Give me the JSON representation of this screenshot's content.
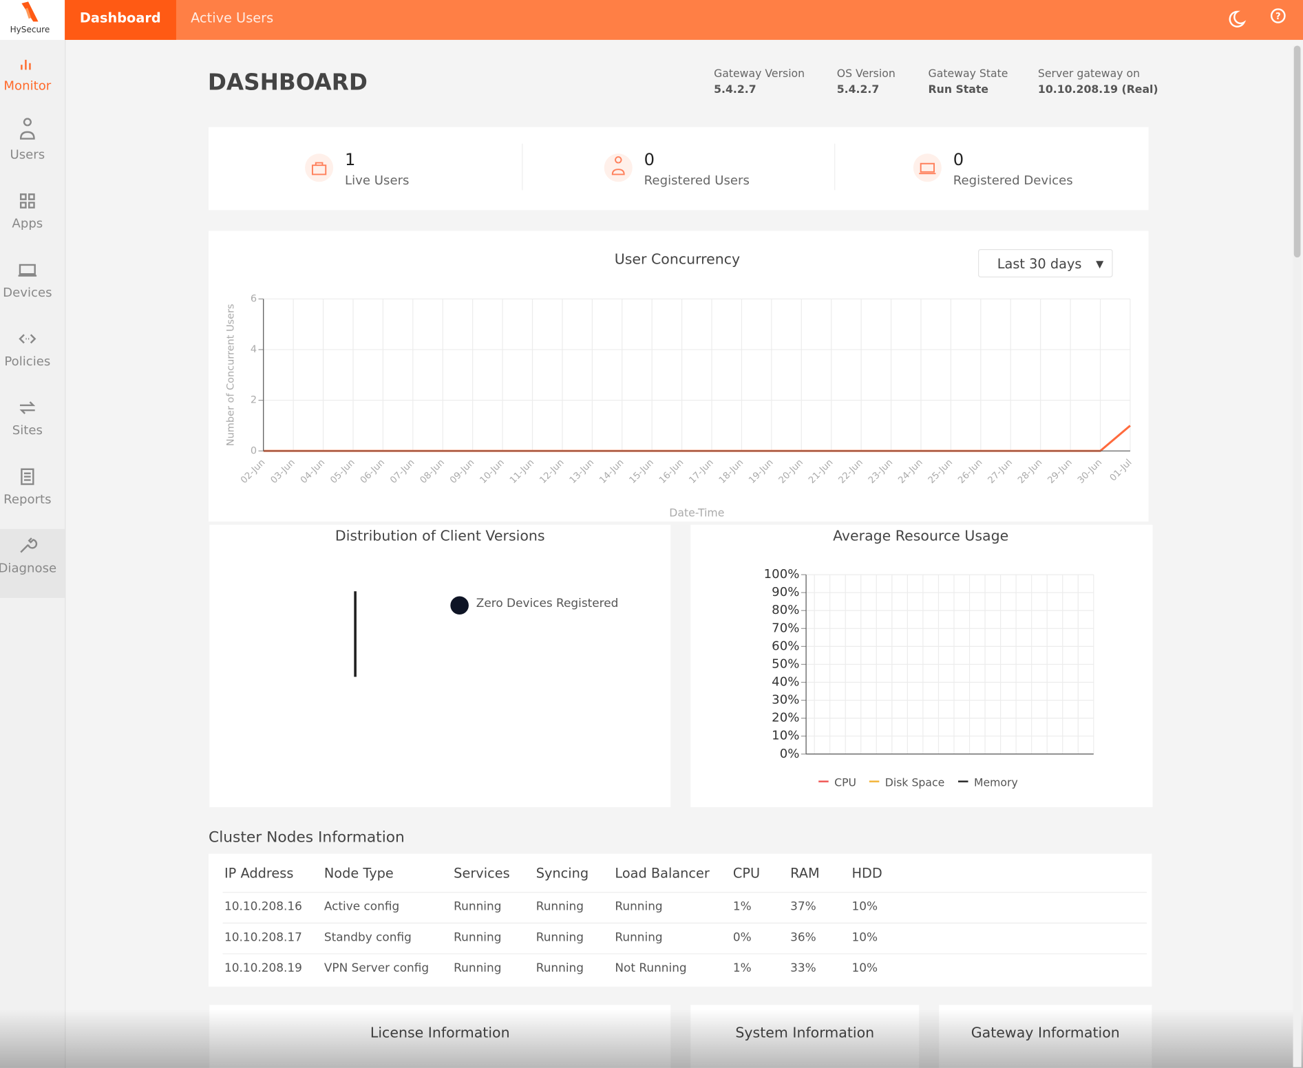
{
  "brand": "HySecure",
  "top_nav": [
    "Dashboard",
    "Active Users"
  ],
  "side_nav": [
    "Monitor",
    "Users",
    "Apps",
    "Devices",
    "Policies",
    "Sites",
    "Reports",
    "Diagnose"
  ],
  "page_title": "DASHBOARD",
  "gateway_info": [
    {
      "label": "Gateway Version",
      "value": "5.4.2.7"
    },
    {
      "label": "OS Version",
      "value": "5.4.2.7"
    },
    {
      "label": "Gateway State",
      "value": "Run State"
    },
    {
      "label": "Server gateway on",
      "value": "10.10.208.19 (Real)"
    }
  ],
  "stats": [
    {
      "value": 1,
      "label": "Live Users"
    },
    {
      "value": 0,
      "label": "Registered Users"
    },
    {
      "value": 0,
      "label": "Registered Devices"
    }
  ],
  "range_select": "Last 30 days",
  "client_versions": {
    "title": "Distribution of Client Versions",
    "legend": "Zero Devices Registered"
  },
  "chart_data": [
    {
      "type": "line",
      "title": "User Concurrency",
      "x_label": "Date-Time",
      "y_label": "Number of Concurrent Users",
      "categories": [
        "02-Jun",
        "03-Jun",
        "04-Jun",
        "05-Jun",
        "06-Jun",
        "07-Jun",
        "08-Jun",
        "09-Jun",
        "10-Jun",
        "11-Jun",
        "12-Jun",
        "13-Jun",
        "14-Jun",
        "15-Jun",
        "16-Jun",
        "17-Jun",
        "18-Jun",
        "19-Jun",
        "20-Jun",
        "21-Jun",
        "22-Jun",
        "23-Jun",
        "24-Jun",
        "25-Jun",
        "26-Jun",
        "27-Jun",
        "28-Jun",
        "29-Jun",
        "30-Jun",
        "01-Jul"
      ],
      "values": [
        0,
        0,
        0,
        0,
        0,
        0,
        0,
        0,
        0,
        0,
        0,
        0,
        0,
        0,
        0,
        0,
        0,
        0,
        0,
        0,
        0,
        0,
        0,
        0,
        0,
        0,
        0,
        0,
        0,
        1
      ],
      "color": "#ff6a3d",
      "ylim": [
        0,
        6
      ],
      "yticks": [
        0,
        2,
        4,
        6
      ],
      "grid": true
    },
    {
      "type": "line",
      "title": "Average Resource Usage",
      "series": [
        {
          "name": "CPU",
          "color": "#ef5350"
        },
        {
          "name": "Disk Space",
          "color": "#f2b233"
        },
        {
          "name": "Memory",
          "color": "#222222"
        }
      ],
      "ylim": [
        0,
        100
      ],
      "yticks": [
        {
          "value": 0,
          "label": "0%"
        },
        {
          "value": 10,
          "label": "10%"
        },
        {
          "value": 20,
          "label": "20%"
        },
        {
          "value": 30,
          "label": "30%"
        },
        {
          "value": 40,
          "label": "40%"
        },
        {
          "value": 50,
          "label": "50%"
        },
        {
          "value": 60,
          "label": "60%"
        },
        {
          "value": 70,
          "label": "70%"
        },
        {
          "value": 80,
          "label": "80%"
        },
        {
          "value": 90,
          "label": "90%"
        },
        {
          "value": 100,
          "label": "100%"
        }
      ],
      "grid": true
    }
  ],
  "cluster": {
    "title": "Cluster Nodes Information",
    "headers": [
      "IP Address",
      "Node Type",
      "Services",
      "Syncing",
      "Load Balancer",
      "CPU",
      "RAM",
      "HDD"
    ],
    "rows": [
      [
        "10.10.208.16",
        "Active config",
        "Running",
        "Running",
        "Running",
        "1%",
        "37%",
        "10%"
      ],
      [
        "10.10.208.17",
        "Standby config",
        "Running",
        "Running",
        "Running",
        "0%",
        "36%",
        "10%"
      ],
      [
        "10.10.208.19",
        "VPN Server config",
        "Running",
        "Running",
        "Not Running",
        "1%",
        "33%",
        "10%"
      ]
    ]
  },
  "bottom_cards": [
    "License Information",
    "System Information",
    "Gateway Information"
  ]
}
